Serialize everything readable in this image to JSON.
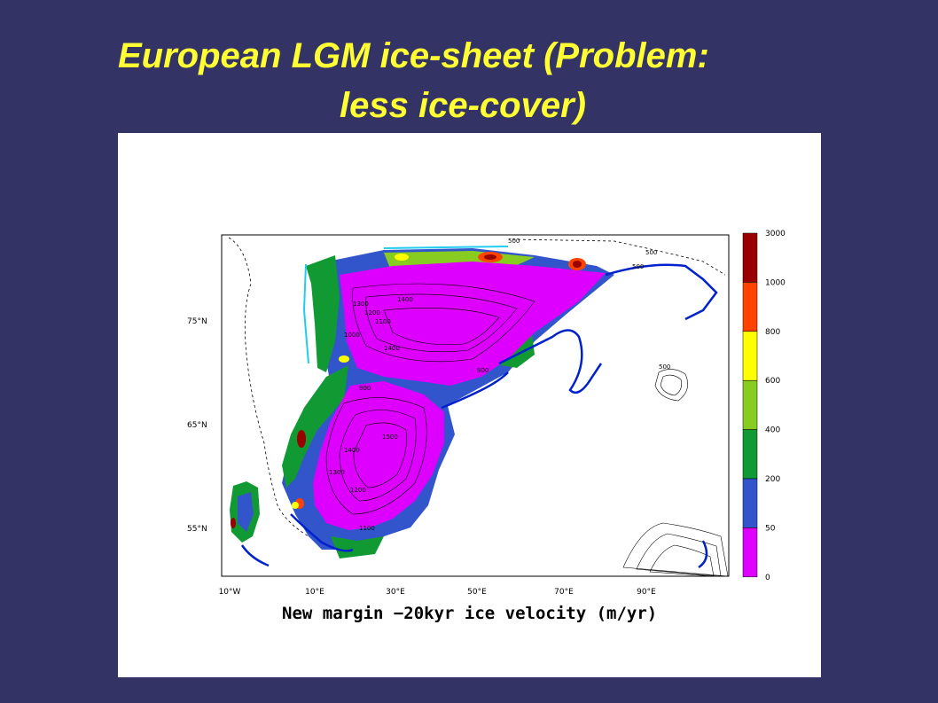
{
  "slide": {
    "title_line1": "European LGM ice-sheet (Problem:",
    "title_line2": "less ice-cover)",
    "title_color": "#ffff33",
    "background": "#333366"
  },
  "map": {
    "caption": "New margin −20kyr ice velocity (m/yr)",
    "lon_labels": [
      "10°W",
      "10°E",
      "30°E",
      "50°E",
      "70°E",
      "90°E"
    ],
    "lat_labels": [
      "75°N",
      "65°N",
      "55°N"
    ],
    "contour_labels": [
      "500",
      "500",
      "500",
      "1400",
      "1300",
      "1200",
      "1100",
      "1000",
      "900",
      "1400",
      "900",
      "1500",
      "1400",
      "1300",
      "1200",
      "1100",
      "500"
    ],
    "legend": {
      "levels": [
        "3000",
        "1000",
        "800",
        "600",
        "400",
        "200",
        "50",
        "0"
      ],
      "colors": [
        "#990000",
        "#ff4400",
        "#ffff00",
        "#88cc22",
        "#119933",
        "#3355cc",
        "#dd00ff"
      ]
    }
  }
}
